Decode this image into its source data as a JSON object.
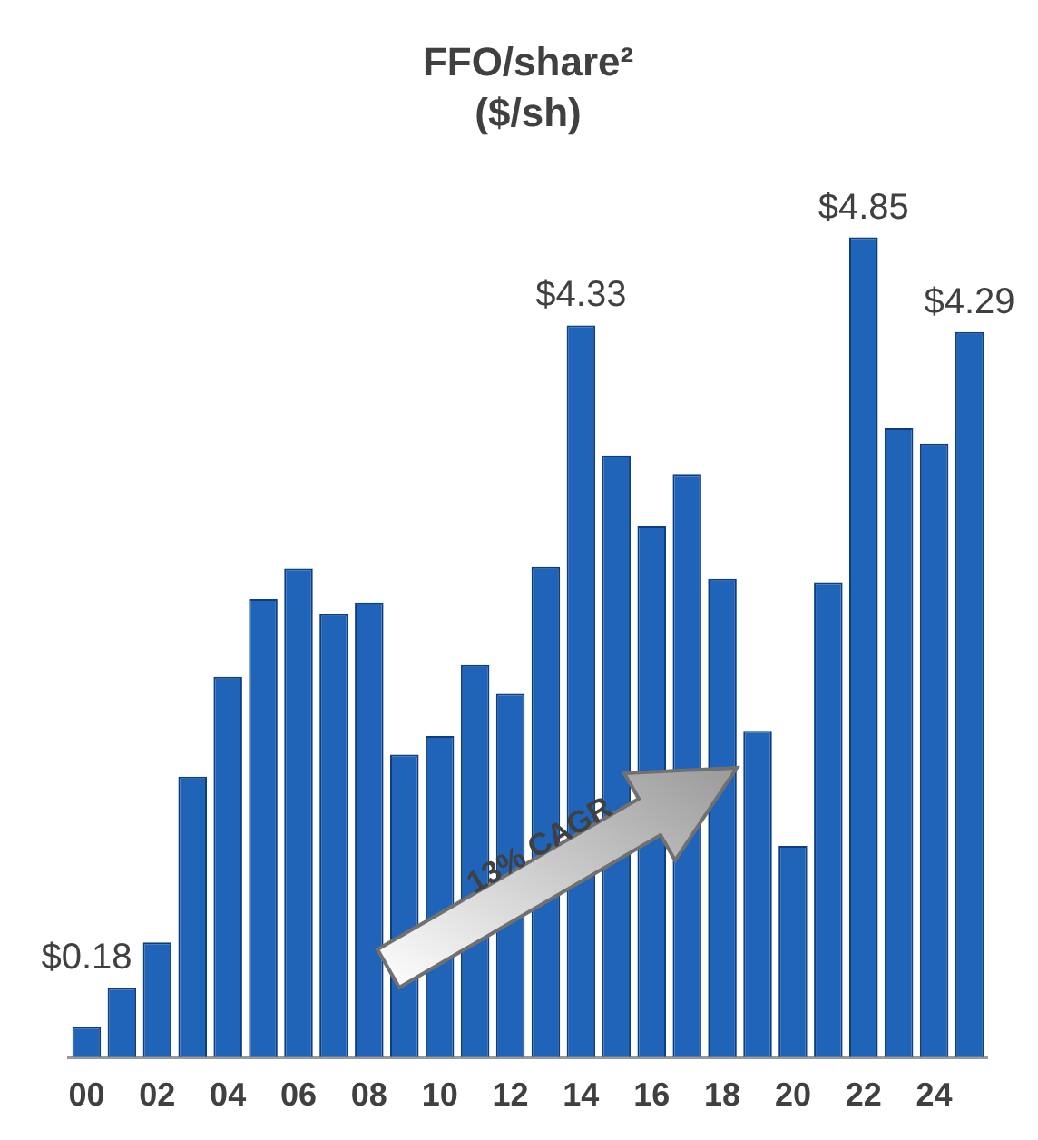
{
  "chart_data": {
    "type": "bar",
    "title": "FFO/share²",
    "subtitle": "($/sh)",
    "categories": [
      "00",
      null,
      "02",
      null,
      "04",
      null,
      "06",
      null,
      "08",
      null,
      "10",
      null,
      "12",
      null,
      "14",
      null,
      "16",
      null,
      "18",
      null,
      "20",
      null,
      "22",
      null,
      "24",
      null
    ],
    "values": [
      0.18,
      0.41,
      0.68,
      1.66,
      2.25,
      2.71,
      2.89,
      2.62,
      2.69,
      1.79,
      1.9,
      2.32,
      2.15,
      2.9,
      4.33,
      3.56,
      3.14,
      3.45,
      2.83,
      1.93,
      1.25,
      2.81,
      4.85,
      3.72,
      3.63,
      4.29
    ],
    "value_labels": [
      "$0.18",
      null,
      null,
      null,
      null,
      null,
      null,
      null,
      null,
      null,
      null,
      null,
      null,
      null,
      "$4.33",
      null,
      null,
      null,
      null,
      null,
      null,
      null,
      "$4.85",
      null,
      null,
      "$4.29"
    ],
    "color": "#1f64b8",
    "annotations": [
      "13% CAGR"
    ],
    "grid": false,
    "legend": false
  }
}
